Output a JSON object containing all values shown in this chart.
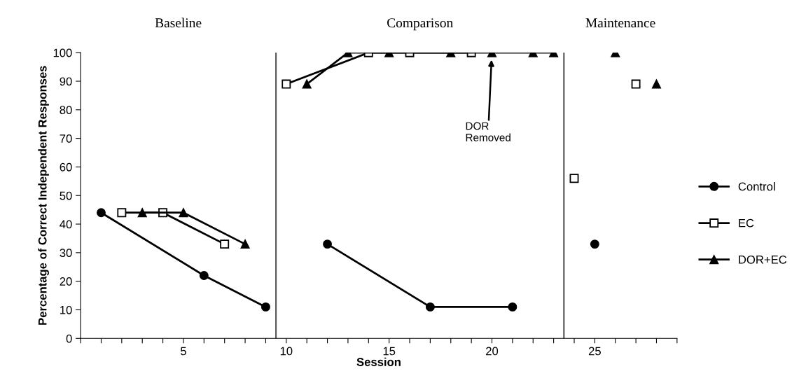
{
  "chart_data": {
    "type": "line",
    "xlabel": "Session",
    "ylabel": "Percentage of Correct Independent Responses",
    "series": [
      {
        "name": "Control",
        "color": "#000000",
        "marker": "circle",
        "x": [
          1,
          6,
          9,
          9.5,
          12,
          17,
          21,
          23.5,
          25
        ],
        "values": [
          44,
          22,
          11,
          null,
          33,
          11,
          11,
          null,
          33
        ]
      },
      {
        "name": "EC",
        "color": "#000000",
        "marker": "square",
        "x": [
          2,
          4,
          7,
          9.5,
          10,
          14,
          16,
          19,
          23.5,
          24,
          25,
          27
        ],
        "values": [
          44,
          44,
          33,
          null,
          89,
          100,
          100,
          100,
          null,
          56,
          null,
          89
        ]
      },
      {
        "name": "DOR+EC",
        "color": "#000000",
        "marker": "triangle",
        "x": [
          3,
          5,
          8,
          9.5,
          11,
          13,
          15,
          18,
          20,
          22,
          23,
          23.5,
          26,
          27,
          28
        ],
        "values": [
          44,
          44,
          33,
          null,
          89,
          100,
          100,
          100,
          100,
          100,
          100,
          null,
          100,
          null,
          89
        ]
      }
    ],
    "xlim": [
      0,
      29
    ],
    "xticks": [
      {
        "value": 0,
        "label": null
      },
      {
        "value": 1,
        "label": null
      },
      {
        "value": 2,
        "label": null
      },
      {
        "value": 3,
        "label": null
      },
      {
        "value": 4,
        "label": null
      },
      5,
      {
        "value": 6,
        "label": null
      },
      {
        "value": 7,
        "label": null
      },
      {
        "value": 8,
        "label": null
      },
      {
        "value": 9,
        "label": null
      },
      10,
      {
        "value": 11,
        "label": null
      },
      {
        "value": 12,
        "label": null
      },
      {
        "value": 13,
        "label": null
      },
      {
        "value": 14,
        "label": null
      },
      15,
      {
        "value": 16,
        "label": null
      },
      {
        "value": 17,
        "label": null
      },
      {
        "value": 18,
        "label": null
      },
      {
        "value": 19,
        "label": null
      },
      20,
      {
        "value": 21,
        "label": null
      },
      {
        "value": 22,
        "label": null
      },
      {
        "value": 23,
        "label": null
      },
      {
        "value": 24,
        "label": null
      },
      25,
      {
        "value": 26,
        "label": null
      },
      {
        "value": 27,
        "label": null
      },
      {
        "value": 28,
        "label": null
      },
      {
        "value": 29,
        "label": null
      }
    ],
    "ylim": [
      0,
      100
    ],
    "yticks": [
      0,
      10,
      20,
      30,
      40,
      50,
      60,
      70,
      80,
      90,
      100
    ],
    "ref_lines": [
      {
        "axis": "x",
        "value": 9.5,
        "color": "#555555"
      },
      {
        "axis": "x",
        "value": 23.5,
        "color": "#555555"
      }
    ],
    "annotations": [
      "Baseline",
      "Comparison",
      "Maintenance",
      "DOR\nRemoved"
    ],
    "line_style": "solid",
    "grid": false,
    "legend": "right"
  }
}
